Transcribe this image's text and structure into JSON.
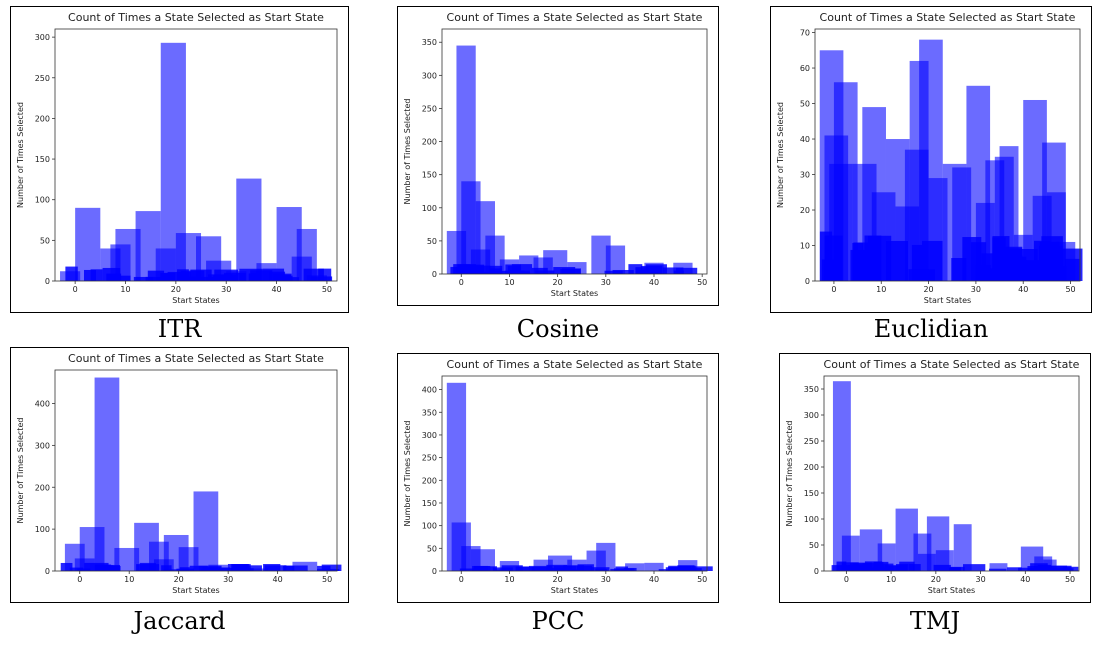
{
  "chart_data": [
    {
      "type": "bar",
      "caption": "ITR",
      "title": "Count of Times a State Selected as Start State",
      "xlabel": "Start States",
      "ylabel": "Number of Times Selected",
      "xlim": [
        -4,
        52
      ],
      "ylim": [
        0,
        310
      ],
      "xticks": [
        0,
        10,
        20,
        30,
        40,
        50
      ],
      "yticks": [
        0,
        50,
        100,
        150,
        200,
        250,
        300
      ],
      "bars": [
        {
          "x0": 0,
          "x1": 5,
          "h": 90
        },
        {
          "x0": 8,
          "x1": 13,
          "h": 64
        },
        {
          "x0": 12,
          "x1": 17,
          "h": 86
        },
        {
          "x0": 17,
          "x1": 22,
          "h": 293
        },
        {
          "x0": 20,
          "x1": 25,
          "h": 59
        },
        {
          "x0": 24,
          "x1": 29,
          "h": 55
        },
        {
          "x0": 32,
          "x1": 37,
          "h": 126
        },
        {
          "x0": 40,
          "x1": 45,
          "h": 91
        },
        {
          "x0": 44,
          "x1": 48,
          "h": 64
        },
        {
          "x0": 5,
          "x1": 9,
          "h": 40
        },
        {
          "x0": 7,
          "x1": 11,
          "h": 45
        },
        {
          "x0": 16,
          "x1": 20,
          "h": 40
        },
        {
          "x0": 36,
          "x1": 40,
          "h": 22
        },
        {
          "x0": 43,
          "x1": 47,
          "h": 30
        },
        {
          "x0": 26,
          "x1": 31,
          "h": 25
        },
        {
          "x0": 30,
          "x1": 34,
          "h": 12
        },
        {
          "x0": -3,
          "x1": 1,
          "h": 12
        },
        {
          "x0": 46,
          "x1": 50,
          "h": 7
        }
      ],
      "noise_max": 18
    },
    {
      "type": "bar",
      "caption": "Cosine",
      "title": "Count of Times a State Selected as Start State",
      "xlabel": "Start States",
      "ylabel": "Number of Times Selected",
      "xlim": [
        -4,
        51
      ],
      "ylim": [
        0,
        370
      ],
      "xticks": [
        0,
        10,
        20,
        30,
        40,
        50
      ],
      "yticks": [
        0,
        50,
        100,
        150,
        200,
        250,
        300,
        350
      ],
      "bars": [
        {
          "x0": -1,
          "x1": 3,
          "h": 345
        },
        {
          "x0": 0,
          "x1": 4,
          "h": 140
        },
        {
          "x0": 3,
          "x1": 7,
          "h": 110
        },
        {
          "x0": -3,
          "x1": 1,
          "h": 65
        },
        {
          "x0": 5,
          "x1": 9,
          "h": 58
        },
        {
          "x0": 2,
          "x1": 6,
          "h": 37
        },
        {
          "x0": 17,
          "x1": 22,
          "h": 36
        },
        {
          "x0": 27,
          "x1": 31,
          "h": 58
        },
        {
          "x0": 30,
          "x1": 34,
          "h": 43
        },
        {
          "x0": 12,
          "x1": 16,
          "h": 28
        },
        {
          "x0": 15,
          "x1": 19,
          "h": 25
        },
        {
          "x0": 8,
          "x1": 12,
          "h": 22
        },
        {
          "x0": 38,
          "x1": 42,
          "h": 17
        },
        {
          "x0": 44,
          "x1": 48,
          "h": 17
        },
        {
          "x0": 22,
          "x1": 26,
          "h": 18
        }
      ],
      "noise_max": 15
    },
    {
      "type": "bar",
      "caption": "Euclidian",
      "title": "Count of Times a State Selected as Start State",
      "xlabel": "Start States",
      "ylabel": "Number of Times Selected",
      "xlim": [
        -4,
        52
      ],
      "ylim": [
        0,
        71
      ],
      "xticks": [
        0,
        10,
        20,
        30,
        40,
        50
      ],
      "yticks": [
        0,
        10,
        20,
        30,
        40,
        50,
        60,
        70
      ],
      "bars": [
        {
          "x0": -3,
          "x1": 2,
          "h": 65
        },
        {
          "x0": -2,
          "x1": 3,
          "h": 41
        },
        {
          "x0": -1,
          "x1": 4,
          "h": 33
        },
        {
          "x0": 0,
          "x1": 5,
          "h": 56
        },
        {
          "x0": 4,
          "x1": 9,
          "h": 33
        },
        {
          "x0": 6,
          "x1": 11,
          "h": 49
        },
        {
          "x0": 8,
          "x1": 13,
          "h": 25
        },
        {
          "x0": 11,
          "x1": 16,
          "h": 40
        },
        {
          "x0": 13,
          "x1": 18,
          "h": 21
        },
        {
          "x0": 15,
          "x1": 20,
          "h": 37
        },
        {
          "x0": 16,
          "x1": 20,
          "h": 62
        },
        {
          "x0": 18,
          "x1": 23,
          "h": 68
        },
        {
          "x0": 20,
          "x1": 24,
          "h": 29
        },
        {
          "x0": 23,
          "x1": 28,
          "h": 33
        },
        {
          "x0": 25,
          "x1": 29,
          "h": 32
        },
        {
          "x0": 28,
          "x1": 33,
          "h": 55
        },
        {
          "x0": 30,
          "x1": 34,
          "h": 22
        },
        {
          "x0": 32,
          "x1": 36,
          "h": 34
        },
        {
          "x0": 35,
          "x1": 39,
          "h": 38
        },
        {
          "x0": 34,
          "x1": 38,
          "h": 35
        },
        {
          "x0": 38,
          "x1": 42,
          "h": 13
        },
        {
          "x0": 40,
          "x1": 45,
          "h": 51
        },
        {
          "x0": 42,
          "x1": 46,
          "h": 24
        },
        {
          "x0": 44,
          "x1": 49,
          "h": 39
        },
        {
          "x0": 45,
          "x1": 49,
          "h": 25
        },
        {
          "x0": 47,
          "x1": 51,
          "h": 11
        }
      ],
      "noise_max": 14
    },
    {
      "type": "bar",
      "caption": "Jaccard",
      "title": "Count of Times a State Selected as Start State",
      "xlabel": "Start States",
      "ylabel": "Number of Times Selected",
      "xlim": [
        -5,
        52
      ],
      "ylim": [
        0,
        480
      ],
      "xticks": [
        0,
        10,
        20,
        30,
        40,
        50
      ],
      "yticks": [
        0,
        100,
        200,
        300,
        400
      ],
      "bars": [
        {
          "x0": -3,
          "x1": 1,
          "h": 65
        },
        {
          "x0": 0,
          "x1": 5,
          "h": 105
        },
        {
          "x0": 3,
          "x1": 8,
          "h": 462
        },
        {
          "x0": 7,
          "x1": 12,
          "h": 55
        },
        {
          "x0": 11,
          "x1": 16,
          "h": 115
        },
        {
          "x0": 14,
          "x1": 18,
          "h": 70
        },
        {
          "x0": 17,
          "x1": 22,
          "h": 86
        },
        {
          "x0": 20,
          "x1": 24,
          "h": 57
        },
        {
          "x0": 23,
          "x1": 28,
          "h": 190
        },
        {
          "x0": 26,
          "x1": 30,
          "h": 15
        },
        {
          "x0": 34,
          "x1": 38,
          "h": 6
        },
        {
          "x0": 43,
          "x1": 48,
          "h": 22
        },
        {
          "x0": -1,
          "x1": 3,
          "h": 30
        },
        {
          "x0": 15,
          "x1": 19,
          "h": 28
        }
      ],
      "noise_max": 20
    },
    {
      "type": "bar",
      "caption": "PCC",
      "title": "Count of Times a State Selected as Start State",
      "xlabel": "Start States",
      "ylabel": "Number of Times Selected",
      "xlim": [
        -4,
        51
      ],
      "ylim": [
        0,
        430
      ],
      "xticks": [
        0,
        10,
        20,
        30,
        40,
        50
      ],
      "yticks": [
        0,
        50,
        100,
        150,
        200,
        250,
        300,
        350,
        400
      ],
      "bars": [
        {
          "x0": -3,
          "x1": 1,
          "h": 415
        },
        {
          "x0": -2,
          "x1": 2,
          "h": 107
        },
        {
          "x0": 0,
          "x1": 4,
          "h": 55
        },
        {
          "x0": 2,
          "x1": 7,
          "h": 48
        },
        {
          "x0": 8,
          "x1": 12,
          "h": 22
        },
        {
          "x0": 15,
          "x1": 19,
          "h": 25
        },
        {
          "x0": 18,
          "x1": 23,
          "h": 34
        },
        {
          "x0": 22,
          "x1": 26,
          "h": 25
        },
        {
          "x0": 26,
          "x1": 30,
          "h": 45
        },
        {
          "x0": 28,
          "x1": 32,
          "h": 62
        },
        {
          "x0": 34,
          "x1": 38,
          "h": 17
        },
        {
          "x0": 38,
          "x1": 42,
          "h": 18
        },
        {
          "x0": 45,
          "x1": 49,
          "h": 24
        }
      ],
      "noise_max": 15
    },
    {
      "type": "bar",
      "caption": "TMJ",
      "title": "Count of Times a State Selected as Start State",
      "xlabel": "Start States",
      "ylabel": "Number of Times Selected",
      "xlim": [
        -5,
        52
      ],
      "ylim": [
        0,
        375
      ],
      "xticks": [
        0,
        10,
        20,
        30,
        40,
        50
      ],
      "yticks": [
        0,
        50,
        100,
        150,
        200,
        250,
        300,
        350
      ],
      "bars": [
        {
          "x0": -3,
          "x1": 1,
          "h": 365
        },
        {
          "x0": -1,
          "x1": 3,
          "h": 68
        },
        {
          "x0": 3,
          "x1": 8,
          "h": 80
        },
        {
          "x0": 7,
          "x1": 11,
          "h": 53
        },
        {
          "x0": 11,
          "x1": 16,
          "h": 120
        },
        {
          "x0": 15,
          "x1": 19,
          "h": 72
        },
        {
          "x0": 18,
          "x1": 23,
          "h": 105
        },
        {
          "x0": 20,
          "x1": 24,
          "h": 40
        },
        {
          "x0": 24,
          "x1": 28,
          "h": 90
        },
        {
          "x0": 32,
          "x1": 36,
          "h": 15
        },
        {
          "x0": 39,
          "x1": 44,
          "h": 47
        },
        {
          "x0": 42,
          "x1": 46,
          "h": 28
        },
        {
          "x0": 44,
          "x1": 47,
          "h": 22
        },
        {
          "x0": 16,
          "x1": 20,
          "h": 33
        }
      ],
      "noise_max": 20
    }
  ],
  "colors": {
    "bar": "#0000ff",
    "frame": "#000000"
  }
}
